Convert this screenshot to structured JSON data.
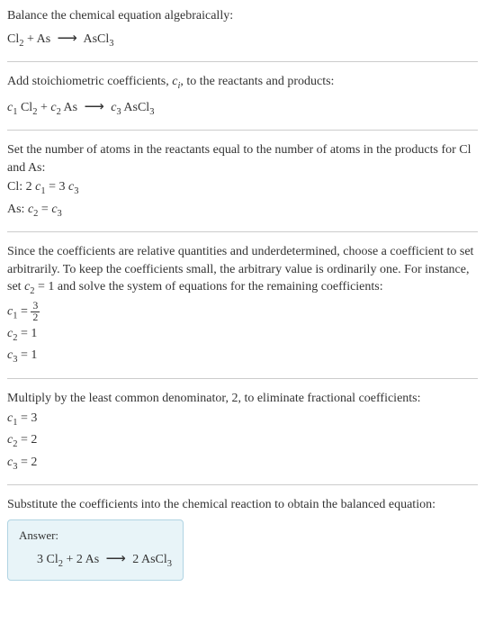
{
  "intro": {
    "line1": "Balance the chemical equation algebraically:",
    "eq_lhs1": "Cl",
    "eq_lhs1_sub": "2",
    "eq_plus1": " + As ",
    "eq_arrow": "⟶",
    "eq_rhs1": " AsCl",
    "eq_rhs1_sub": "3"
  },
  "step1": {
    "text": "Add stoichiometric coefficients, ",
    "ci": "c",
    "ci_sub": "i",
    "text2": ", to the reactants and products:",
    "c1": "c",
    "c1_sub": "1",
    "sp1": " Cl",
    "sp1_sub": "2",
    "plus": " + ",
    "c2": "c",
    "c2_sub": "2",
    "sp2": " As ",
    "arrow": "⟶",
    "c3": " c",
    "c3_sub": "3",
    "sp3": " AsCl",
    "sp3_sub": "3"
  },
  "step2": {
    "text": "Set the number of atoms in the reactants equal to the number of atoms in the products for Cl and As:",
    "cl_label": "Cl:   2 ",
    "cl_c1": "c",
    "cl_c1_sub": "1",
    "cl_eq": " = 3 ",
    "cl_c3": "c",
    "cl_c3_sub": "3",
    "as_label": "As:   ",
    "as_c2": "c",
    "as_c2_sub": "2",
    "as_eq": " = ",
    "as_c3": "c",
    "as_c3_sub": "3"
  },
  "step3": {
    "text": "Since the coefficients are relative quantities and underdetermined, choose a coefficient to set arbitrarily. To keep the coefficients small, the arbitrary value is ordinarily one. For instance, set ",
    "c2": "c",
    "c2_sub": "2",
    "text2": " = 1 and solve the system of equations for the remaining coefficients:",
    "r1_c": "c",
    "r1_sub": "1",
    "r1_eq": " = ",
    "r1_num": "3",
    "r1_den": "2",
    "r2_c": "c",
    "r2_sub": "2",
    "r2_val": " = 1",
    "r3_c": "c",
    "r3_sub": "3",
    "r3_val": " = 1"
  },
  "step4": {
    "text": "Multiply by the least common denominator, 2, to eliminate fractional coefficients:",
    "r1_c": "c",
    "r1_sub": "1",
    "r1_val": " = 3",
    "r2_c": "c",
    "r2_sub": "2",
    "r2_val": " = 2",
    "r3_c": "c",
    "r3_sub": "3",
    "r3_val": " = 2"
  },
  "step5": {
    "text": "Substitute the coefficients into the chemical reaction to obtain the balanced equation:"
  },
  "answer": {
    "label": "Answer:",
    "coeff1": "3 Cl",
    "sub1": "2",
    "plus1": " + 2 As ",
    "arrow": "⟶",
    "rhs": " 2 AsCl",
    "sub2": "3"
  }
}
